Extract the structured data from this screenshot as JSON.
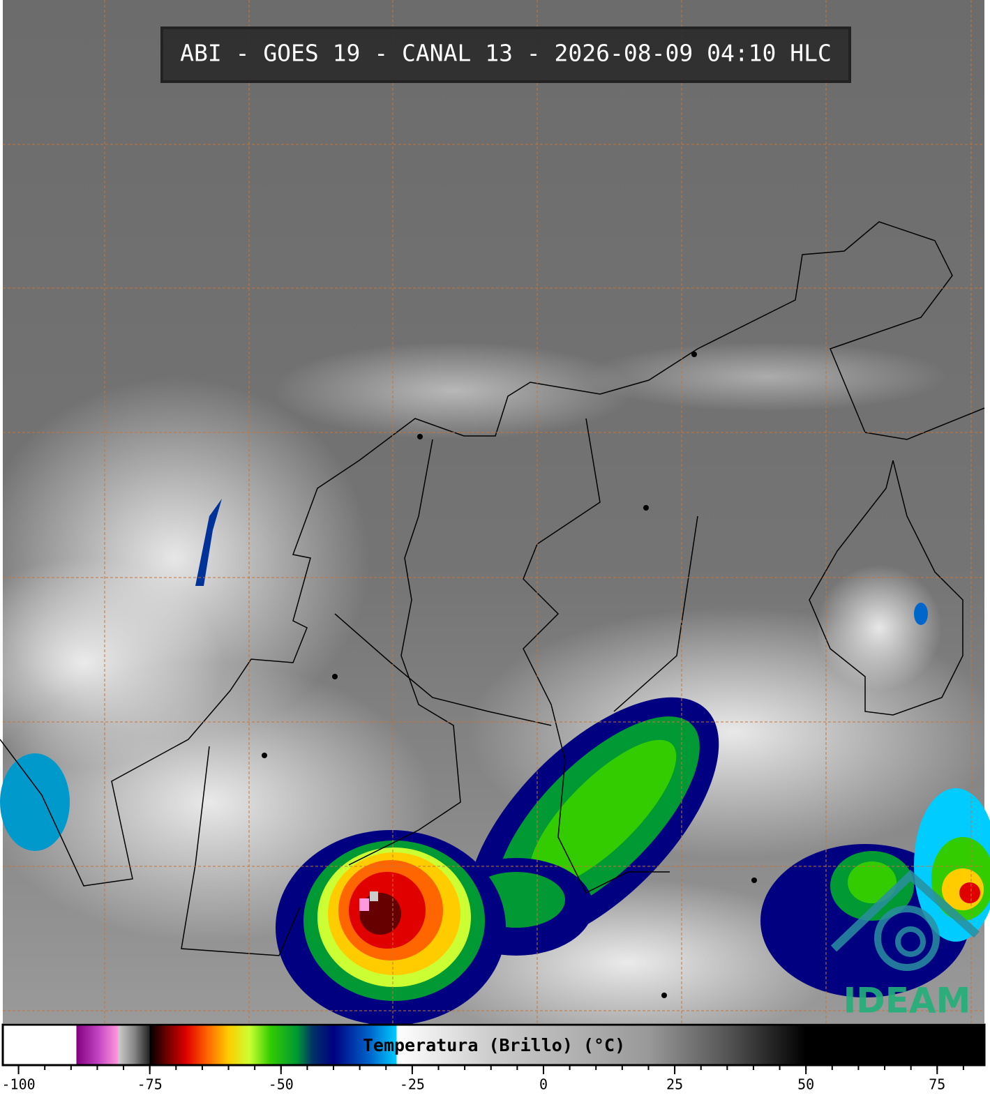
{
  "map": {
    "title": "ABI - GOES 19 - CANAL 13 - 2026-08-09 04:10 HLC",
    "logo_text": "IDEAM",
    "colorbar": {
      "label": "Temperatura (Brillo) (°C)",
      "range": [
        -103,
        84
      ],
      "ticks": [
        -100,
        -75,
        -50,
        -25,
        0,
        25,
        50,
        75
      ],
      "minor_ticks": [
        -100,
        -95,
        -90,
        -85,
        -80,
        -75,
        -70,
        -65,
        -60,
        -55,
        -50,
        -45,
        -40,
        -35,
        -30,
        -25,
        -20,
        -15,
        -10,
        -5,
        0,
        5,
        10,
        15,
        20,
        25,
        30,
        35,
        40,
        45,
        50,
        55,
        60,
        65,
        70,
        75,
        80
      ],
      "stops": [
        {
          "value": -103,
          "color": "#ffffff"
        },
        {
          "value": -89,
          "color": "#ffffff"
        },
        {
          "value": -89,
          "color": "#800080"
        },
        {
          "value": -85,
          "color": "#c040c0"
        },
        {
          "value": -81,
          "color": "#ff99dd"
        },
        {
          "value": -81,
          "color": "#cccccc"
        },
        {
          "value": -78,
          "color": "#888888"
        },
        {
          "value": -75,
          "color": "#222222"
        },
        {
          "value": -75,
          "color": "#000000"
        },
        {
          "value": -72,
          "color": "#660000"
        },
        {
          "value": -68,
          "color": "#e00000"
        },
        {
          "value": -64,
          "color": "#ff6600"
        },
        {
          "value": -60,
          "color": "#ffcc00"
        },
        {
          "value": -56,
          "color": "#ccff33"
        },
        {
          "value": -52,
          "color": "#33cc00"
        },
        {
          "value": -47,
          "color": "#009933"
        },
        {
          "value": -44,
          "color": "#003366"
        },
        {
          "value": -40,
          "color": "#000080"
        },
        {
          "value": -33,
          "color": "#0066cc"
        },
        {
          "value": -28,
          "color": "#00ccff"
        },
        {
          "value": -28,
          "color": "#ffffff"
        },
        {
          "value": -10,
          "color": "#cccccc"
        },
        {
          "value": 20,
          "color": "#999999"
        },
        {
          "value": 35,
          "color": "#555555"
        },
        {
          "value": 50,
          "color": "#000000"
        },
        {
          "value": 84,
          "color": "#000000"
        }
      ]
    }
  }
}
